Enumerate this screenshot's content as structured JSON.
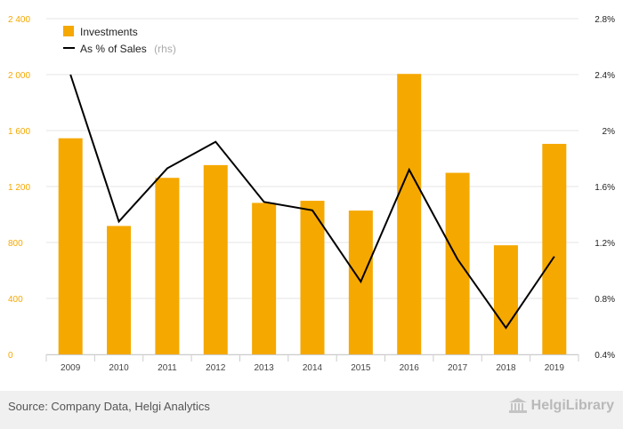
{
  "chart_data": {
    "type": "bar",
    "categories": [
      "2009",
      "2010",
      "2011",
      "2012",
      "2013",
      "2014",
      "2015",
      "2016",
      "2017",
      "2018",
      "2019"
    ],
    "series": [
      {
        "name": "Investments",
        "type": "bar",
        "axis": "left",
        "values": [
          1545,
          918,
          1262,
          1353,
          1083,
          1098,
          1028,
          2005,
          1298,
          780,
          1505
        ]
      },
      {
        "name": "As % of Sales",
        "legend_suffix": "(rhs)",
        "type": "line",
        "axis": "right",
        "values": [
          2.4,
          1.35,
          1.73,
          1.92,
          1.49,
          1.43,
          0.92,
          1.72,
          1.08,
          0.59,
          1.1
        ]
      }
    ],
    "y_left": {
      "ylim": [
        0,
        2400
      ],
      "ticks": [
        0,
        400,
        800,
        1200,
        1600,
        2000,
        2400
      ],
      "tick_labels": [
        "0",
        "400",
        "800",
        "1 200",
        "1 600",
        "2 000",
        "2 400"
      ]
    },
    "y_right": {
      "ylim": [
        0.4,
        2.8
      ],
      "ticks": [
        0.4,
        0.8,
        1.2,
        1.6,
        2.0,
        2.4,
        2.8
      ],
      "tick_labels": [
        "0.4%",
        "0.8%",
        "1.2%",
        "1.6%",
        "2%",
        "2.4%",
        "2.8%"
      ]
    },
    "title": "",
    "xlabel": "",
    "grid": true,
    "legend_position": "top-left",
    "colors": {
      "bar": "#f5a800",
      "line": "#000000",
      "grid": "#e6e6e6",
      "left_axis_text": "#f5a800"
    }
  },
  "footer": {
    "source": "Source: Company Data, Helgi Analytics",
    "logo": "HelgiLibrary"
  }
}
